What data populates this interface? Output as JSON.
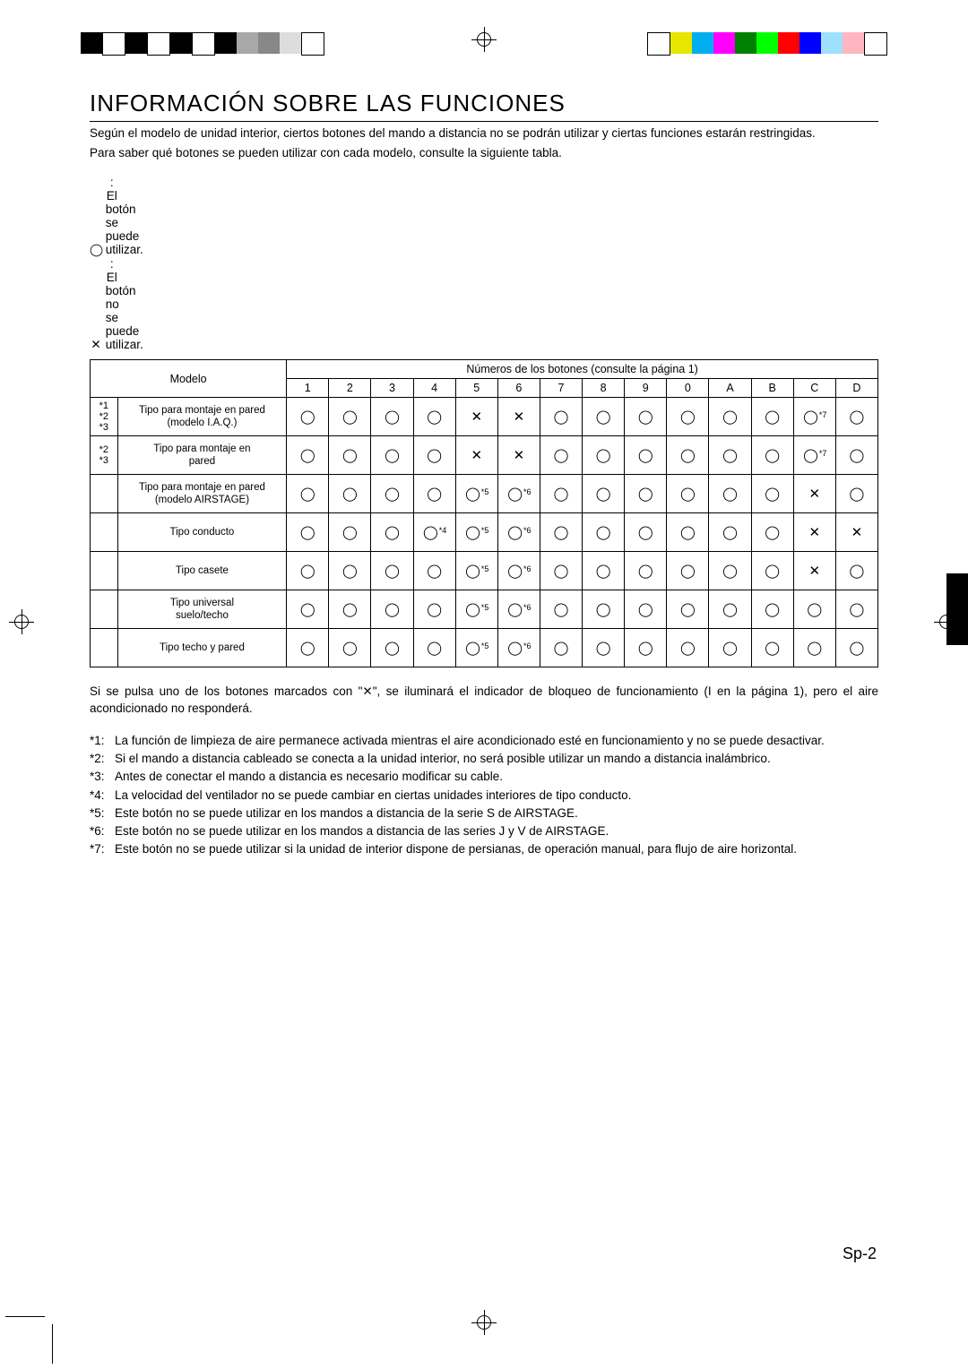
{
  "title": "INFORMACIÓN SOBRE LAS FUNCIONES",
  "intro": {
    "p1": "Según el modelo de unidad interior, ciertos botones del mando a distancia no se podrán utilizar y ciertas funciones estarán restringidas.",
    "p2": "Para saber qué botones se pueden utilizar con cada modelo, consulte la siguiente tabla."
  },
  "legend": {
    "circle_sym": "◯",
    "circle_text": ": El botón se puede utilizar.",
    "cross_sym": "✕",
    "cross_text": ": El botón no se puede utilizar."
  },
  "table": {
    "hdr_model": "Modelo",
    "hdr_numbers": "Números de los botones (consulte la página 1)",
    "cols": [
      "1",
      "2",
      "3",
      "4",
      "5",
      "6",
      "7",
      "8",
      "9",
      "0",
      "A",
      "B",
      "C",
      "D"
    ],
    "rows": [
      {
        "ref": "*1\n*2\n*3",
        "name": "Tipo para montaje en pared\n(modelo I.A.Q.)",
        "cells": [
          "◯",
          "◯",
          "◯",
          "◯",
          "✕",
          "✕",
          "◯",
          "◯",
          "◯",
          "◯",
          "◯",
          "◯",
          "◯*7",
          "◯"
        ]
      },
      {
        "ref": "*2\n*3",
        "name": "Tipo para montaje en\npared",
        "cells": [
          "◯",
          "◯",
          "◯",
          "◯",
          "✕",
          "✕",
          "◯",
          "◯",
          "◯",
          "◯",
          "◯",
          "◯",
          "◯*7",
          "◯"
        ]
      },
      {
        "ref": "",
        "name": "Tipo para montaje en pared\n(modelo AIRSTAGE)",
        "cells": [
          "◯",
          "◯",
          "◯",
          "◯",
          "◯*5",
          "◯*6",
          "◯",
          "◯",
          "◯",
          "◯",
          "◯",
          "◯",
          "✕",
          "◯"
        ]
      },
      {
        "ref": "",
        "name": "Tipo conducto",
        "cells": [
          "◯",
          "◯",
          "◯",
          "◯*4",
          "◯*5",
          "◯*6",
          "◯",
          "◯",
          "◯",
          "◯",
          "◯",
          "◯",
          "✕",
          "✕"
        ]
      },
      {
        "ref": "",
        "name": "Tipo casete",
        "cells": [
          "◯",
          "◯",
          "◯",
          "◯",
          "◯*5",
          "◯*6",
          "◯",
          "◯",
          "◯",
          "◯",
          "◯",
          "◯",
          "✕",
          "◯"
        ]
      },
      {
        "ref": "",
        "name": "Tipo universal\nsuelo/techo",
        "cells": [
          "◯",
          "◯",
          "◯",
          "◯",
          "◯*5",
          "◯*6",
          "◯",
          "◯",
          "◯",
          "◯",
          "◯",
          "◯",
          "◯",
          "◯"
        ]
      },
      {
        "ref": "",
        "name": "Tipo techo y pared",
        "cells": [
          "◯",
          "◯",
          "◯",
          "◯",
          "◯*5",
          "◯*6",
          "◯",
          "◯",
          "◯",
          "◯",
          "◯",
          "◯",
          "◯",
          "◯"
        ]
      }
    ]
  },
  "post": {
    "p1": "Si se pulsa uno de los botones marcados con \"✕\", se iluminará el indicador de bloqueo de funcionamiento (I  en la página 1), pero el aire acondicionado no responderá."
  },
  "notes_list": [
    {
      "id": "*1:",
      "t": "La función de limpieza de aire permanece activada mientras el aire acondicionado esté en funcionamiento y no se puede desactivar."
    },
    {
      "id": "*2:",
      "t": "Si el mando a distancia cableado se conecta a la unidad interior, no será posible utilizar un mando a distancia inalámbrico."
    },
    {
      "id": "*3:",
      "t": "Antes de conectar el mando a distancia es necesario modificar su cable."
    },
    {
      "id": "*4:",
      "t": "La velocidad del ventilador no se puede cambiar en ciertas unidades interiores de tipo conducto."
    },
    {
      "id": "*5:",
      "t": "Este botón no se puede utilizar en los mandos a distancia de la serie S de AIRSTAGE."
    },
    {
      "id": "*6:",
      "t": "Este botón no se puede utilizar en los mandos a distancia de las series J y V de AIRSTAGE."
    },
    {
      "id": "*7:",
      "t": "Este botón no se puede utilizar si la unidad de interior dispone de persianas, de operación manual, para flujo de aire horizontal."
    }
  ],
  "page_number": "Sp-2",
  "reg_colors_left": [
    "#000",
    "#fff",
    "#000",
    "#fff",
    "#000",
    "#fff",
    "#000",
    "#a8a8a8",
    "#888",
    "#ddd",
    "#fff"
  ],
  "reg_colors_right": [
    "#fff",
    "#e6e600",
    "#00aeef",
    "#ff00ff",
    "#008000",
    "#00ff00",
    "#ff0000",
    "#0000ff",
    "#a0e0ff",
    "#ffb6c1",
    "#fff"
  ]
}
